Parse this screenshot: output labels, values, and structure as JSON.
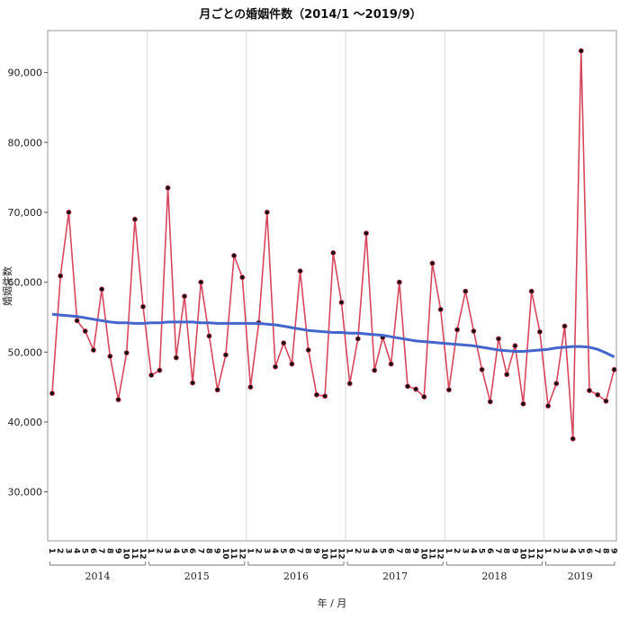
{
  "chart_data": {
    "type": "line",
    "title": "月ごとの婚姻件数（2014/1 ～2019/9）",
    "xlabel": "年 / 月",
    "ylabel": "婚姻件数",
    "ylim": [
      23000,
      96000
    ],
    "yticks": [
      "30,000",
      "40,000",
      "50,000",
      "60,000",
      "70,000",
      "80,000",
      "90,000"
    ],
    "ytick_values": [
      30000,
      40000,
      50000,
      60000,
      70000,
      80000,
      90000
    ],
    "grid": "vertical lines at year boundaries",
    "years": [
      {
        "label": "2014",
        "months": [
          "1",
          "2",
          "3",
          "4",
          "5",
          "6",
          "7",
          "8",
          "9",
          "10",
          "11",
          "12"
        ]
      },
      {
        "label": "2015",
        "months": [
          "1",
          "2",
          "3",
          "4",
          "5",
          "6",
          "7",
          "8",
          "9",
          "10",
          "11",
          "12"
        ]
      },
      {
        "label": "2016",
        "months": [
          "1",
          "2",
          "3",
          "4",
          "5",
          "6",
          "7",
          "8",
          "9",
          "10",
          "11",
          "12"
        ]
      },
      {
        "label": "2017",
        "months": [
          "1",
          "2",
          "3",
          "4",
          "5",
          "6",
          "7",
          "8",
          "9",
          "10",
          "11",
          "12"
        ]
      },
      {
        "label": "2018",
        "months": [
          "1",
          "2",
          "3",
          "4",
          "5",
          "6",
          "7",
          "8",
          "9",
          "10",
          "11",
          "12"
        ]
      },
      {
        "label": "2019",
        "months": [
          "1",
          "2",
          "3",
          "4",
          "5",
          "6",
          "7",
          "8",
          "9"
        ]
      }
    ],
    "series": [
      {
        "type": "line",
        "color": "#d6465c",
        "values": [
          44100,
          60900,
          70000,
          54500,
          53000,
          50300,
          59000,
          49400,
          43200,
          49900,
          69000,
          56500,
          46700,
          47400,
          73500,
          49200,
          58000,
          45600,
          60000,
          52300,
          44600,
          49600,
          63800,
          60700,
          45000,
          54200,
          70000,
          47900,
          51300,
          48300,
          61600,
          50300,
          43900,
          43700,
          64200,
          57100,
          45500,
          51900,
          67000,
          47400,
          52100,
          48300,
          60000,
          45100,
          44700,
          43600,
          62700,
          56100,
          44600,
          53200,
          58700,
          53000,
          47500,
          42900,
          51900,
          46800,
          50900,
          42600,
          58700,
          52900,
          42300,
          45500,
          53700,
          37600,
          93100,
          44500,
          43900,
          43000,
          47500
        ]
      },
      {
        "type": "trend",
        "color": "#4466cc",
        "values": [
          55400,
          55300,
          55200,
          55100,
          54900,
          54700,
          54500,
          54300,
          54200,
          54200,
          54100,
          54100,
          54200,
          54200,
          54300,
          54300,
          54300,
          54300,
          54200,
          54200,
          54100,
          54100,
          54100,
          54100,
          54100,
          54100,
          54000,
          53900,
          53700,
          53500,
          53300,
          53100,
          53000,
          52900,
          52800,
          52800,
          52700,
          52700,
          52600,
          52500,
          52400,
          52200,
          52000,
          51800,
          51600,
          51500,
          51400,
          51300,
          51200,
          51100,
          51000,
          50900,
          50700,
          50500,
          50300,
          50200,
          50100,
          50100,
          50200,
          50300,
          50400,
          50600,
          50700,
          50800,
          50800,
          50700,
          50400,
          49900,
          49300
        ]
      }
    ]
  }
}
